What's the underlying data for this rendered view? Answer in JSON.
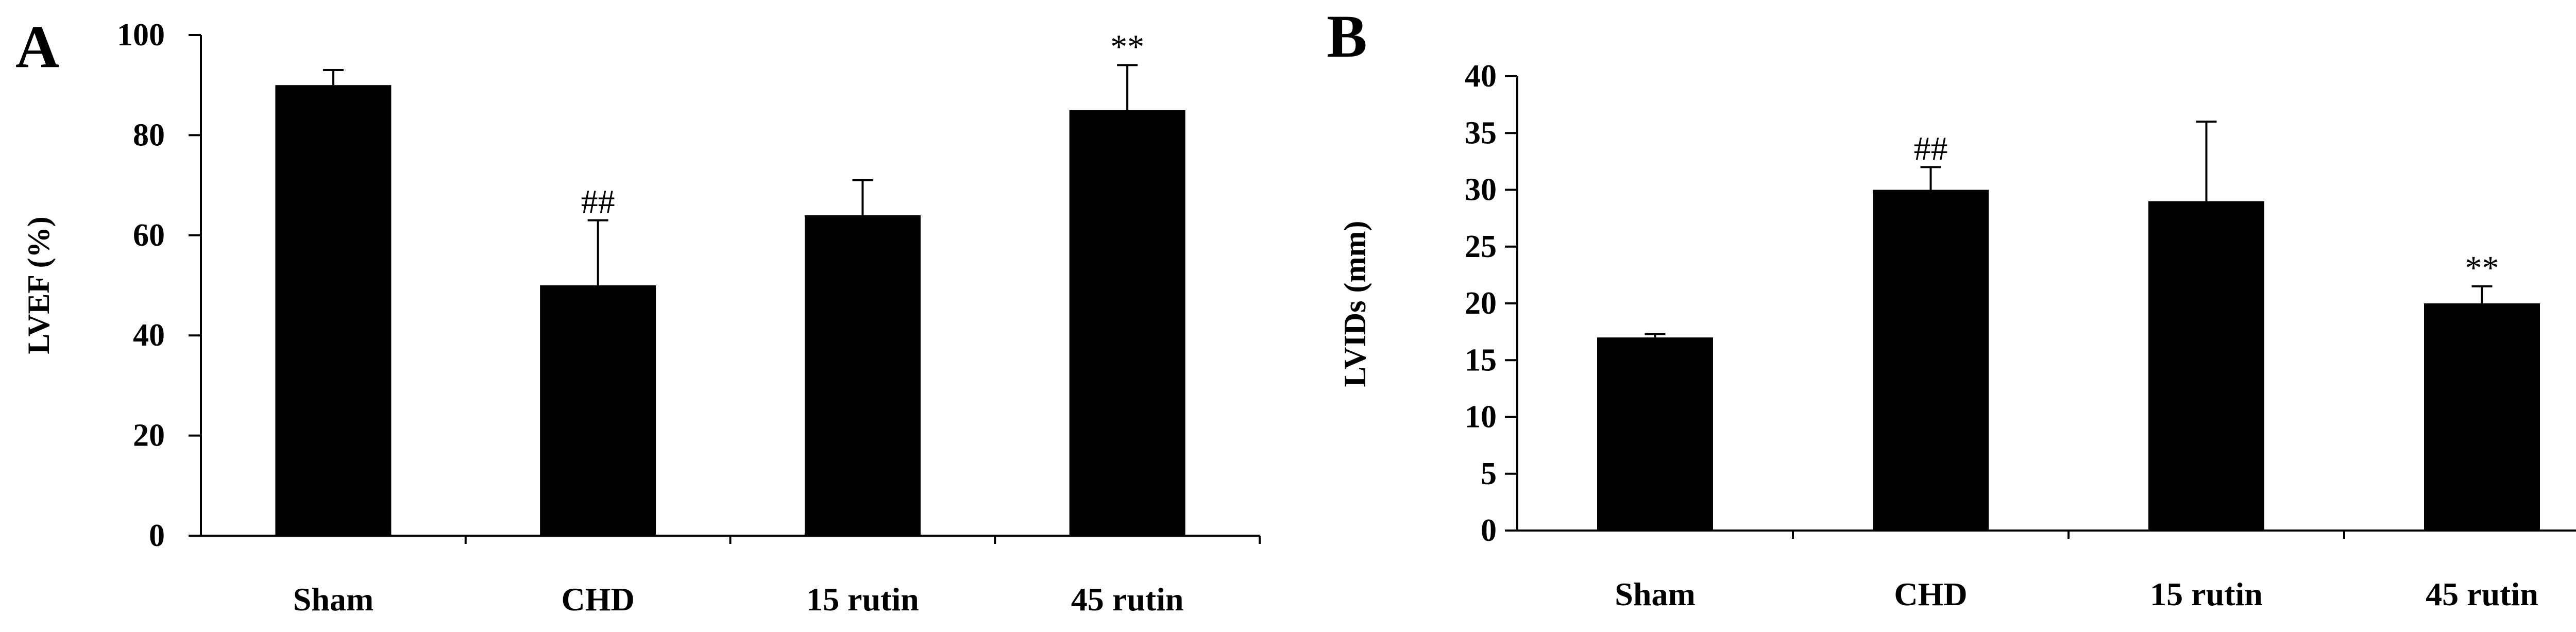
{
  "chart_data": [
    {
      "type": "bar",
      "panel_label": "A",
      "title": "",
      "xlabel": "",
      "ylabel": "LVEF (%)",
      "ylim": [
        0,
        100
      ],
      "yticks": [
        0,
        20,
        40,
        60,
        80,
        100
      ],
      "categories": [
        "Sham",
        "CHD",
        "15 rutin",
        "45 rutin"
      ],
      "values": [
        90,
        50,
        64,
        85
      ],
      "error_plus": [
        3,
        13,
        7,
        9
      ],
      "annotations": [
        "",
        "##",
        "",
        "**"
      ],
      "bar_color": "#000000",
      "grid": false,
      "legend": "none"
    },
    {
      "type": "bar",
      "panel_label": "B",
      "title": "",
      "xlabel": "",
      "ylabel": "LVIDs (mm)",
      "ylim": [
        0,
        40
      ],
      "yticks": [
        0,
        5,
        10,
        15,
        20,
        25,
        30,
        35,
        40
      ],
      "categories": [
        "Sham",
        "CHD",
        "15 rutin",
        "45 rutin"
      ],
      "values": [
        17,
        30,
        29,
        20
      ],
      "error_plus": [
        0.3,
        2,
        7,
        1.5
      ],
      "annotations": [
        "",
        "##",
        "",
        "**"
      ],
      "bar_color": "#000000",
      "grid": false,
      "legend": "none"
    }
  ]
}
